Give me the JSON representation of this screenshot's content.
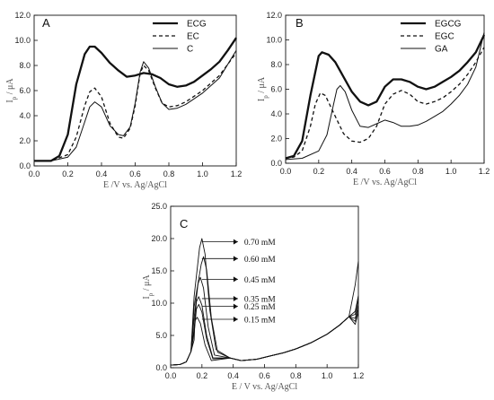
{
  "chart_data": [
    {
      "type": "line",
      "panel_label": "A",
      "xlabel": "E /V vs. Ag/AgCl",
      "ylabel": "I",
      "ylabel_sub": "p",
      "ylabel_unit": " / μA",
      "xlim": [
        0,
        1.2
      ],
      "ylim": [
        0,
        12
      ],
      "xticks": [
        "0.0",
        "0.2",
        "0.4",
        "0.6",
        "0.8",
        "1.0",
        "1.2"
      ],
      "yticks": [
        "0.0",
        "2.0",
        "4.0",
        "6.0",
        "8.0",
        "10.0",
        "12.0"
      ],
      "legend_position": "top-right",
      "series": [
        {
          "name": "ECG",
          "style": "solid-thick",
          "points": [
            [
              0,
              0.4
            ],
            [
              0.1,
              0.4
            ],
            [
              0.15,
              0.8
            ],
            [
              0.2,
              2.5
            ],
            [
              0.25,
              6.5
            ],
            [
              0.3,
              8.9
            ],
            [
              0.33,
              9.5
            ],
            [
              0.36,
              9.5
            ],
            [
              0.4,
              9.0
            ],
            [
              0.45,
              8.2
            ],
            [
              0.5,
              7.6
            ],
            [
              0.55,
              7.1
            ],
            [
              0.6,
              7.2
            ],
            [
              0.65,
              7.4
            ],
            [
              0.7,
              7.3
            ],
            [
              0.75,
              7.0
            ],
            [
              0.8,
              6.5
            ],
            [
              0.85,
              6.3
            ],
            [
              0.9,
              6.4
            ],
            [
              0.95,
              6.7
            ],
            [
              1.0,
              7.2
            ],
            [
              1.05,
              7.7
            ],
            [
              1.1,
              8.3
            ],
            [
              1.15,
              9.2
            ],
            [
              1.2,
              10.2
            ]
          ]
        },
        {
          "name": "EC",
          "style": "dashed",
          "points": [
            [
              0,
              0.4
            ],
            [
              0.1,
              0.4
            ],
            [
              0.2,
              0.9
            ],
            [
              0.25,
              2.3
            ],
            [
              0.3,
              4.8
            ],
            [
              0.33,
              5.9
            ],
            [
              0.36,
              6.2
            ],
            [
              0.4,
              5.5
            ],
            [
              0.45,
              3.4
            ],
            [
              0.5,
              2.3
            ],
            [
              0.53,
              2.2
            ],
            [
              0.57,
              3.0
            ],
            [
              0.6,
              4.8
            ],
            [
              0.63,
              7.4
            ],
            [
              0.65,
              8.0
            ],
            [
              0.68,
              7.6
            ],
            [
              0.72,
              6.2
            ],
            [
              0.76,
              5.0
            ],
            [
              0.8,
              4.7
            ],
            [
              0.85,
              4.8
            ],
            [
              0.9,
              5.1
            ],
            [
              1.0,
              6.0
            ],
            [
              1.1,
              7.2
            ],
            [
              1.2,
              9.0
            ]
          ]
        },
        {
          "name": "C",
          "style": "solid-thin",
          "points": [
            [
              0,
              0.4
            ],
            [
              0.1,
              0.4
            ],
            [
              0.2,
              0.7
            ],
            [
              0.25,
              1.5
            ],
            [
              0.3,
              3.5
            ],
            [
              0.33,
              4.7
            ],
            [
              0.36,
              5.1
            ],
            [
              0.4,
              4.7
            ],
            [
              0.45,
              3.2
            ],
            [
              0.5,
              2.5
            ],
            [
              0.53,
              2.4
            ],
            [
              0.57,
              3.1
            ],
            [
              0.6,
              5.0
            ],
            [
              0.63,
              7.5
            ],
            [
              0.65,
              8.3
            ],
            [
              0.68,
              7.8
            ],
            [
              0.72,
              6.3
            ],
            [
              0.76,
              5.0
            ],
            [
              0.8,
              4.5
            ],
            [
              0.85,
              4.6
            ],
            [
              0.9,
              4.9
            ],
            [
              1.0,
              5.8
            ],
            [
              1.1,
              7.0
            ],
            [
              1.2,
              9.2
            ]
          ]
        }
      ]
    },
    {
      "type": "line",
      "panel_label": "B",
      "xlabel": "E /V vs. Ag/AgCl",
      "ylabel": "I",
      "ylabel_sub": "p",
      "ylabel_unit": " / μA",
      "xlim": [
        0,
        1.2
      ],
      "ylim": [
        0,
        12
      ],
      "xticks": [
        "0.0",
        "0.2",
        "0.4",
        "0.6",
        "0.8",
        "1.0",
        "1.2"
      ],
      "yticks": [
        "0.0",
        "2.0",
        "4.0",
        "6.0",
        "8.0",
        "10.0",
        "12.0"
      ],
      "legend_position": "top-right",
      "series": [
        {
          "name": "EGCG",
          "style": "solid-thick",
          "points": [
            [
              0,
              0.4
            ],
            [
              0.05,
              0.6
            ],
            [
              0.1,
              1.8
            ],
            [
              0.15,
              5.5
            ],
            [
              0.2,
              8.7
            ],
            [
              0.22,
              9.0
            ],
            [
              0.26,
              8.8
            ],
            [
              0.3,
              8.2
            ],
            [
              0.35,
              7.0
            ],
            [
              0.4,
              5.8
            ],
            [
              0.45,
              5.0
            ],
            [
              0.5,
              4.7
            ],
            [
              0.55,
              5.0
            ],
            [
              0.6,
              6.2
            ],
            [
              0.65,
              6.8
            ],
            [
              0.7,
              6.8
            ],
            [
              0.75,
              6.6
            ],
            [
              0.8,
              6.2
            ],
            [
              0.85,
              6.0
            ],
            [
              0.9,
              6.2
            ],
            [
              0.95,
              6.6
            ],
            [
              1.0,
              7.0
            ],
            [
              1.05,
              7.5
            ],
            [
              1.1,
              8.2
            ],
            [
              1.15,
              9.0
            ],
            [
              1.2,
              10.4
            ]
          ]
        },
        {
          "name": "EGC",
          "style": "dashed",
          "points": [
            [
              0,
              0.4
            ],
            [
              0.05,
              0.5
            ],
            [
              0.1,
              1.0
            ],
            [
              0.15,
              3.0
            ],
            [
              0.18,
              4.8
            ],
            [
              0.21,
              5.7
            ],
            [
              0.24,
              5.5
            ],
            [
              0.3,
              3.8
            ],
            [
              0.35,
              2.4
            ],
            [
              0.4,
              1.8
            ],
            [
              0.45,
              1.7
            ],
            [
              0.5,
              2.0
            ],
            [
              0.55,
              3.0
            ],
            [
              0.6,
              4.8
            ],
            [
              0.65,
              5.6
            ],
            [
              0.7,
              5.9
            ],
            [
              0.75,
              5.6
            ],
            [
              0.8,
              5.0
            ],
            [
              0.85,
              4.8
            ],
            [
              0.9,
              5.0
            ],
            [
              0.95,
              5.3
            ],
            [
              1.0,
              5.8
            ],
            [
              1.05,
              6.4
            ],
            [
              1.1,
              7.2
            ],
            [
              1.15,
              8.2
            ],
            [
              1.2,
              9.4
            ]
          ]
        },
        {
          "name": "GA",
          "style": "solid-thin",
          "points": [
            [
              0,
              0.3
            ],
            [
              0.1,
              0.4
            ],
            [
              0.2,
              1.0
            ],
            [
              0.25,
              2.3
            ],
            [
              0.28,
              4.2
            ],
            [
              0.31,
              6.0
            ],
            [
              0.33,
              6.3
            ],
            [
              0.36,
              5.8
            ],
            [
              0.4,
              4.3
            ],
            [
              0.45,
              3.0
            ],
            [
              0.5,
              2.9
            ],
            [
              0.55,
              3.2
            ],
            [
              0.6,
              3.5
            ],
            [
              0.65,
              3.3
            ],
            [
              0.7,
              3.0
            ],
            [
              0.75,
              3.0
            ],
            [
              0.8,
              3.1
            ],
            [
              0.85,
              3.4
            ],
            [
              0.9,
              3.8
            ],
            [
              0.95,
              4.2
            ],
            [
              1.0,
              4.8
            ],
            [
              1.05,
              5.5
            ],
            [
              1.1,
              6.4
            ],
            [
              1.15,
              7.8
            ],
            [
              1.2,
              10.6
            ]
          ]
        }
      ]
    },
    {
      "type": "line",
      "panel_label": "C",
      "xlabel": "E / V vs. Ag/AgCl",
      "ylabel": "I",
      "ylabel_sub": "p",
      "ylabel_unit": " / μA",
      "xlim": [
        0,
        1.2
      ],
      "ylim": [
        0,
        25
      ],
      "xticks": [
        "0.0",
        "0.2",
        "0.4",
        "0.6",
        "0.8",
        "1.0",
        "1.2"
      ],
      "yticks": [
        "0.0",
        "5.0",
        "10.0",
        "15.0",
        "20.0",
        "25.0"
      ],
      "annotations": [
        "0.70 mM",
        "0.60 mM",
        "0.45 mM",
        "0.35 mM",
        "0.25 mM",
        "0.15 mM"
      ],
      "series": [
        {
          "name": "0.70 mM",
          "peak": 20.0,
          "peak_x": 0.2,
          "end": 16.5
        },
        {
          "name": "0.60 mM",
          "peak": 17.2,
          "peak_x": 0.21,
          "end": 11.2
        },
        {
          "name": "0.45 mM",
          "peak": 14.0,
          "peak_x": 0.19,
          "end": 10.6
        },
        {
          "name": "0.35 mM",
          "peak": 11.0,
          "peak_x": 0.18,
          "end": 9.8
        },
        {
          "name": "0.25 mM",
          "peak": 9.8,
          "peak_x": 0.18,
          "end": 9.2
        },
        {
          "name": "0.15 mM",
          "peak": 7.8,
          "peak_x": 0.17,
          "end": 8.6
        }
      ]
    }
  ]
}
